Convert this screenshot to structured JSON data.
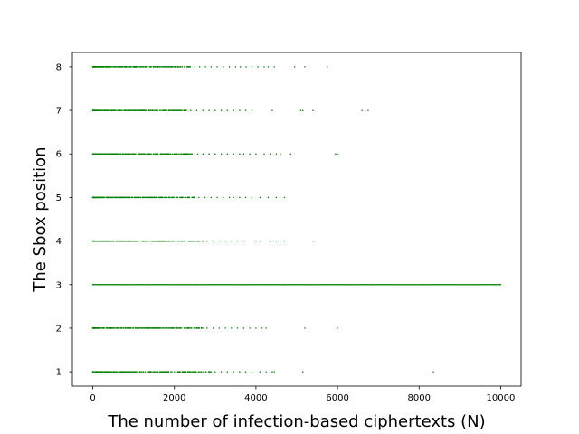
{
  "chart_data": {
    "type": "scatter",
    "xlabel": "The number of infection-based ciphertexts (N)",
    "ylabel": "The Sbox position",
    "xlim": [
      -500,
      10500
    ],
    "ylim": [
      0.67,
      8.33
    ],
    "xticks": [
      0,
      2000,
      4000,
      6000,
      8000,
      10000
    ],
    "yticks": [
      1,
      2,
      3,
      4,
      5,
      6,
      7,
      8
    ],
    "grid": false,
    "legend": "none",
    "marker_color": "#008000",
    "series": [
      {
        "rows": [
          {
            "y": 8,
            "dense_to": 2400,
            "sparse_x": [
              2500,
              2620,
              2760,
              2900,
              3050,
              3200,
              3350,
              3500,
              3620,
              3760,
              3900,
              4050,
              4200,
              4300,
              4450,
              4950,
              5200,
              5750
            ]
          },
          {
            "y": 7,
            "dense_to": 2300,
            "sparse_x": [
              2400,
              2550,
              2700,
              2850,
              3000,
              3150,
              3300,
              3450,
              3600,
              3750,
              3900,
              4400,
              5100,
              5150,
              5400,
              6600,
              6750
            ]
          },
          {
            "y": 6,
            "dense_to": 2600,
            "sparse_x": [
              2700,
              2850,
              3000,
              3150,
              3300,
              3450,
              3600,
              3700,
              3850,
              4000,
              4200,
              4350,
              4500,
              4600,
              4850,
              5950,
              6000
            ]
          },
          {
            "y": 5,
            "dense_to": 2500,
            "sparse_x": [
              2600,
              2750,
              2900,
              3050,
              3200,
              3350,
              3450,
              3600,
              3750,
              3900,
              4100,
              4300,
              4500,
              4700
            ]
          },
          {
            "y": 4,
            "dense_to": 2700,
            "sparse_x": [
              2800,
              2950,
              3100,
              3250,
              3400,
              3550,
              3700,
              4000,
              4100,
              4350,
              4500,
              4700,
              5400
            ]
          },
          {
            "y": 3,
            "dense_to": 10000,
            "sparse_x": []
          },
          {
            "y": 2,
            "dense_to": 2700,
            "sparse_x": [
              2800,
              2950,
              3100,
              3250,
              3400,
              3550,
              3700,
              3850,
              4000,
              4150,
              4250,
              5200,
              6000
            ]
          },
          {
            "y": 1,
            "dense_to": 2900,
            "sparse_x": [
              3000,
              3150,
              3300,
              3450,
              3600,
              3750,
              3900,
              4100,
              4250,
              4400,
              4450,
              5150,
              8350
            ]
          }
        ]
      }
    ]
  }
}
